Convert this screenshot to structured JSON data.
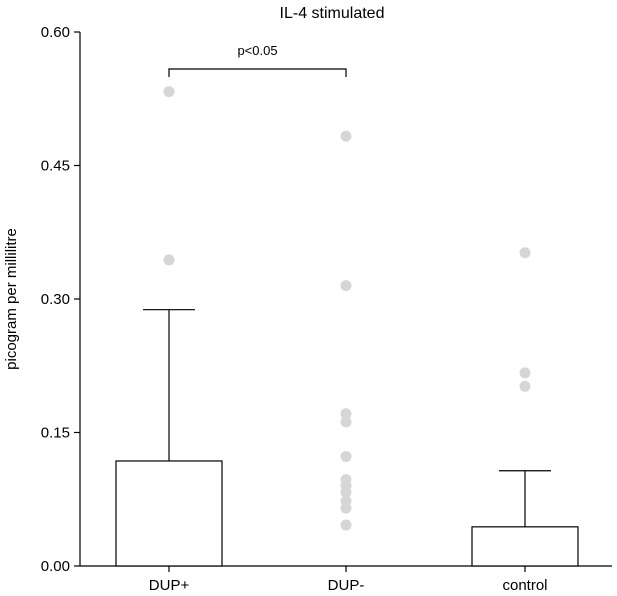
{
  "chart_data": {
    "type": "bar",
    "title": "IL-4 stimulated",
    "xlabel": "",
    "ylabel": "picogram per millilitre",
    "ylim": [
      0,
      0.6
    ],
    "yticks": [
      "0.00",
      "0.15",
      "0.30",
      "0.45",
      "0.60"
    ],
    "ytick_values": [
      0,
      0.15,
      0.3,
      0.45,
      0.6
    ],
    "categories": [
      "DUP+",
      "DUP-",
      "control"
    ],
    "values": [
      0.118,
      0.0,
      0.044
    ],
    "error_upper": [
      0.288,
      0.0,
      0.107
    ],
    "points": [
      [
        0.533,
        0.344
      ],
      [
        0.483,
        0.315,
        0.171,
        0.162,
        0.123,
        0.097,
        0.09,
        0.083,
        0.073,
        0.065,
        0.046
      ],
      [
        0.352,
        0.217,
        0.202
      ]
    ],
    "grid": false,
    "annotation": {
      "text": "p<0.05",
      "from": "DUP+",
      "to": "DUP-"
    },
    "colors": {
      "points": "#d6d6d6",
      "bars": "#ffffff",
      "axes": "#000000"
    }
  }
}
